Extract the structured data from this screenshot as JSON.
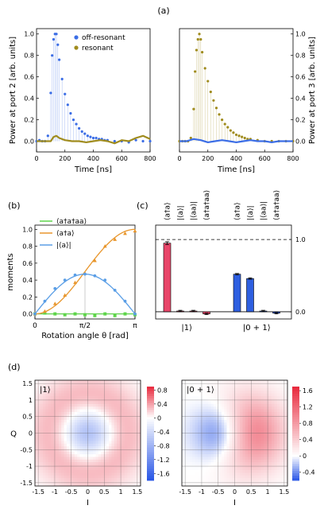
{
  "colors": {
    "blue": "#3c6ee6",
    "gold": "#a08c1e",
    "green": "#5ed44a",
    "orange": "#e8962c",
    "lightblue": "#5a9ee6",
    "pink": "#e8466a",
    "bar_blue": "#2e5fe0"
  },
  "labels": {
    "a": "(a)",
    "b": "(b)",
    "c": "(c)",
    "d": "(d)"
  },
  "chart_data": [
    {
      "id": "a-left",
      "type": "scatter",
      "xlabel": "Time [ns]",
      "ylabel": "Power at port 2 [arb. units]",
      "xlim": [
        0,
        800
      ],
      "ylim": [
        -0.1,
        1.05
      ],
      "xticks": [
        "0",
        "200",
        "400",
        "600",
        "800"
      ],
      "yticks": [
        "0.0",
        "0.2",
        "0.4",
        "0.6",
        "0.8",
        "1.0"
      ],
      "series": [
        {
          "name": "off-resonant",
          "color": "#3c6ee6",
          "x": [
            0,
            20,
            40,
            60,
            80,
            100,
            110,
            120,
            130,
            140,
            150,
            160,
            180,
            200,
            220,
            240,
            260,
            280,
            300,
            320,
            340,
            360,
            380,
            400,
            420,
            440,
            460,
            480,
            500,
            550,
            600,
            650,
            700,
            750,
            800
          ],
          "y": [
            0.0,
            0.01,
            0.0,
            0.0,
            0.05,
            0.45,
            0.8,
            0.95,
            1.0,
            1.0,
            0.9,
            0.76,
            0.58,
            0.44,
            0.34,
            0.26,
            0.2,
            0.16,
            0.12,
            0.09,
            0.07,
            0.05,
            0.04,
            0.03,
            0.03,
            0.02,
            0.02,
            0.01,
            0.01,
            0.0,
            0.0,
            -0.01,
            0.01,
            0.0,
            0.0
          ]
        },
        {
          "name": "resonant",
          "color": "#a08c1e",
          "x": [
            0,
            50,
            100,
            120,
            140,
            160,
            200,
            250,
            300,
            350,
            400,
            450,
            500,
            550,
            600,
            650,
            700,
            750,
            800
          ],
          "y": [
            0.0,
            0.0,
            0.0,
            0.04,
            0.05,
            0.03,
            0.01,
            0.0,
            0.0,
            -0.01,
            0.0,
            0.01,
            0.0,
            -0.02,
            0.01,
            0.0,
            0.03,
            0.05,
            0.02
          ]
        }
      ],
      "legend": "top-right"
    },
    {
      "id": "a-right",
      "type": "scatter",
      "xlabel": "Time [ns]",
      "ylabel": "Power at port 3 [arb. units]",
      "xlim": [
        0,
        800
      ],
      "ylim": [
        -0.1,
        1.05
      ],
      "xticks": [
        "0",
        "200",
        "400",
        "600",
        "800"
      ],
      "yticks": [
        "0.0",
        "0.2",
        "0.4",
        "0.6",
        "0.8",
        "1.0"
      ],
      "series": [
        {
          "name": "resonant",
          "color": "#a08c1e",
          "x": [
            0,
            20,
            40,
            60,
            80,
            100,
            110,
            120,
            130,
            140,
            150,
            160,
            180,
            200,
            220,
            240,
            260,
            280,
            300,
            320,
            340,
            360,
            380,
            400,
            420,
            440,
            460,
            480,
            500,
            550,
            600,
            650,
            700,
            750,
            800
          ],
          "y": [
            0.0,
            0.0,
            0.0,
            0.0,
            0.03,
            0.3,
            0.65,
            0.85,
            0.95,
            1.0,
            0.95,
            0.83,
            0.68,
            0.56,
            0.46,
            0.38,
            0.31,
            0.25,
            0.2,
            0.16,
            0.13,
            0.1,
            0.08,
            0.06,
            0.05,
            0.04,
            0.03,
            0.02,
            0.02,
            0.01,
            0.0,
            0.0,
            0.0,
            0.0,
            0.0
          ]
        },
        {
          "name": "off-resonant",
          "color": "#3c6ee6",
          "x": [
            0,
            50,
            100,
            150,
            200,
            250,
            300,
            350,
            400,
            450,
            500,
            550,
            600,
            650,
            700,
            750,
            800
          ],
          "y": [
            0.0,
            0.0,
            0.02,
            0.01,
            -0.01,
            0.0,
            0.01,
            0.0,
            -0.01,
            0.0,
            0.01,
            0.0,
            0.0,
            -0.01,
            0.0,
            0.0,
            0.0
          ]
        }
      ]
    },
    {
      "id": "b",
      "type": "scatter",
      "xlabel": "Rotation angle θ [rad]",
      "ylabel": "moments",
      "xlim": [
        0,
        3.14159
      ],
      "ylim": [
        -0.06,
        1.05
      ],
      "xticks": [
        "0",
        "π/2",
        "π"
      ],
      "yticks": [
        "0.0",
        "0.2",
        "0.4",
        "0.6",
        "0.8",
        "1.0"
      ],
      "series": [
        {
          "name": "⟨a†a†aa⟩",
          "color": "#5ed44a",
          "x": [
            0.0,
            0.31,
            0.63,
            0.94,
            1.26,
            1.57,
            1.88,
            2.2,
            2.51,
            2.83,
            3.14
          ],
          "y": [
            0.0,
            0.01,
            0.0,
            -0.01,
            0.0,
            -0.01,
            -0.02,
            0.0,
            -0.02,
            0.0,
            -0.01
          ]
        },
        {
          "name": "⟨a†a⟩",
          "color": "#e8962c",
          "x": [
            0.0,
            0.31,
            0.63,
            0.94,
            1.26,
            1.57,
            1.88,
            2.2,
            2.51,
            2.83,
            3.14
          ],
          "y": [
            0.0,
            0.03,
            0.12,
            0.22,
            0.37,
            0.48,
            0.63,
            0.8,
            0.88,
            0.95,
            0.98
          ]
        },
        {
          "name": "|⟨a⟩|",
          "color": "#5a9ee6",
          "x": [
            0.0,
            0.31,
            0.63,
            0.94,
            1.26,
            1.57,
            1.88,
            2.2,
            2.51,
            2.83,
            3.14
          ],
          "y": [
            0.0,
            0.15,
            0.3,
            0.4,
            0.46,
            0.47,
            0.45,
            0.4,
            0.28,
            0.15,
            0.0
          ]
        }
      ],
      "legend": "top-left"
    },
    {
      "id": "c",
      "type": "bar",
      "ylim": [
        -0.1,
        1.2
      ],
      "yticks": [
        "1.0",
        "0.0"
      ],
      "reference_line": 1.0,
      "groups": [
        {
          "label": "|1⟩",
          "color": "#e8466a",
          "categories": [
            "⟨a†a⟩",
            "|⟨a⟩|",
            "|⟨aa⟩|",
            "⟨a†a†aa⟩"
          ],
          "values": [
            0.95,
            0.01,
            0.01,
            -0.03
          ],
          "errors": [
            0.02,
            0.01,
            0.01,
            0.01
          ]
        },
        {
          "label": "|0 + 1⟩",
          "color": "#2e5fe0",
          "categories": [
            "⟨a†a⟩",
            "|⟨a⟩|",
            "|⟨aa⟩|",
            "⟨a†a†aa⟩"
          ],
          "values": [
            0.52,
            0.46,
            0.01,
            -0.02
          ],
          "errors": [
            0.01,
            0.01,
            0.01,
            0.01
          ]
        }
      ]
    },
    {
      "id": "d-left",
      "type": "heatmap",
      "state_label": "|1⟩",
      "xlabel": "I",
      "ylabel": "Q",
      "xlim": [
        -1.6,
        1.6
      ],
      "ylim": [
        -1.6,
        1.6
      ],
      "xticks": [
        "-1.5",
        "-1",
        "-0.5",
        "0",
        "0.5",
        "1",
        "1.5"
      ],
      "yticks": [
        "1.5",
        "1",
        "0.5",
        "0",
        "-0.5",
        "-1",
        "-1.5"
      ],
      "colorbar": {
        "min": -1.8,
        "max": 0.9,
        "ticks": [
          "0.8",
          "0.4",
          "0",
          "-0.4",
          "-0.8",
          "-1.2",
          "-1.6"
        ]
      }
    },
    {
      "id": "d-right",
      "type": "heatmap",
      "state_label": "|0 + 1⟩",
      "xlabel": "I",
      "ylabel": "",
      "xlim": [
        -1.6,
        1.6
      ],
      "ylim": [
        -1.6,
        1.6
      ],
      "xticks": [
        "-1.5",
        "-1",
        "-0.5",
        "0",
        "0.5",
        "1",
        "1.5"
      ],
      "colorbar": {
        "min": -0.6,
        "max": 1.7,
        "ticks": [
          "1.6",
          "1.2",
          "0.8",
          "0.4",
          "0",
          "-0.4"
        ]
      }
    }
  ]
}
